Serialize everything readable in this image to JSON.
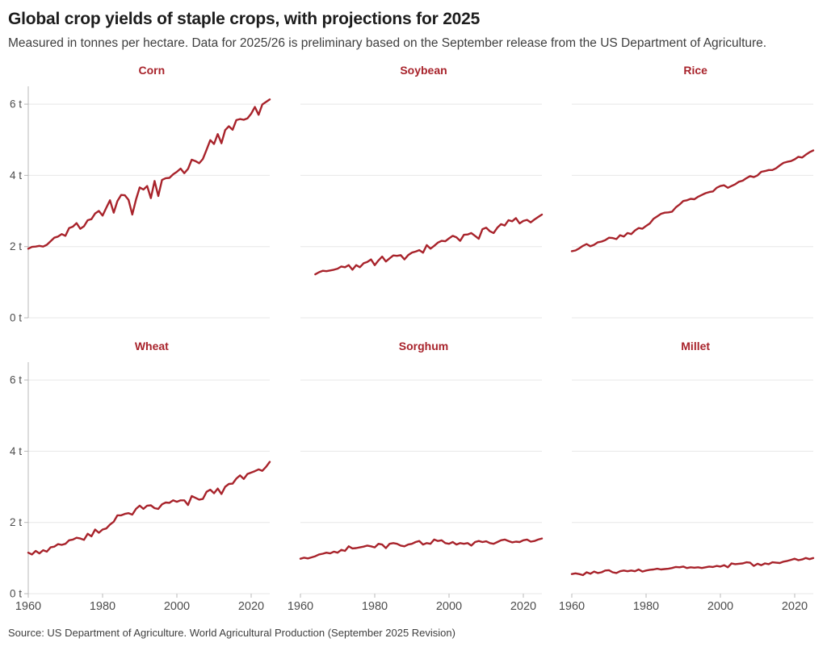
{
  "header": {
    "title": "Global crop yields of staple crops, with projections for 2025",
    "subtitle": "Measured in tonnes per hectare. Data for 2025/26 is preliminary based on the September release from the US Department of Agriculture."
  },
  "source": "Source: US Department of Agriculture. World Agricultural Production (September 2025 Revision)",
  "colors": {
    "line": "#a8232b",
    "facet_title": "#a8232b",
    "grid": "#e7e7e7",
    "axis": "#b8b8b8",
    "tick_text": "#4d4d4d",
    "title_text": "#1d1d1d",
    "subtitle_text": "#3e3e3e"
  },
  "chart_data": {
    "type": "line",
    "unit": "tonnes per hectare",
    "layout": {
      "rows": 2,
      "cols": 3,
      "grid": "horizontal gridlines only, y labels on left column, x labels on bottom row"
    },
    "ylim": [
      0,
      6.5
    ],
    "yticks": [
      0,
      2,
      4,
      6
    ],
    "ytick_labels": [
      "0 t",
      "2 t",
      "4 t",
      "6 t"
    ],
    "xlim": [
      1960,
      2025
    ],
    "xticks": [
      1960,
      1980,
      2000,
      2020
    ],
    "xtick_labels": [
      "1960",
      "1980",
      "2000",
      "2020"
    ],
    "facets": [
      {
        "title": "Corn",
        "start_year": 1960,
        "end_year": 2025,
        "values": [
          1.94,
          1.99,
          2.0,
          2.02,
          2.0,
          2.05,
          2.15,
          2.25,
          2.28,
          2.35,
          2.3,
          2.52,
          2.56,
          2.66,
          2.5,
          2.57,
          2.74,
          2.77,
          2.93,
          3.0,
          2.87,
          3.09,
          3.3,
          2.95,
          3.28,
          3.45,
          3.44,
          3.31,
          2.9,
          3.32,
          3.66,
          3.6,
          3.7,
          3.36,
          3.84,
          3.42,
          3.87,
          3.92,
          3.93,
          4.03,
          4.1,
          4.19,
          4.06,
          4.18,
          4.44,
          4.4,
          4.34,
          4.46,
          4.72,
          4.99,
          4.88,
          5.16,
          4.9,
          5.27,
          5.38,
          5.28,
          5.55,
          5.58,
          5.56,
          5.6,
          5.73,
          5.92,
          5.7,
          5.99,
          6.06,
          6.13
        ]
      },
      {
        "title": "Soybean",
        "start_year": 1964,
        "end_year": 2025,
        "values": [
          1.22,
          1.28,
          1.32,
          1.31,
          1.33,
          1.35,
          1.38,
          1.44,
          1.42,
          1.48,
          1.35,
          1.48,
          1.42,
          1.53,
          1.57,
          1.64,
          1.48,
          1.61,
          1.72,
          1.58,
          1.67,
          1.75,
          1.74,
          1.76,
          1.64,
          1.76,
          1.83,
          1.86,
          1.9,
          1.83,
          2.04,
          1.94,
          2.02,
          2.11,
          2.16,
          2.15,
          2.23,
          2.3,
          2.26,
          2.16,
          2.33,
          2.34,
          2.38,
          2.3,
          2.22,
          2.49,
          2.53,
          2.43,
          2.38,
          2.53,
          2.63,
          2.59,
          2.74,
          2.71,
          2.8,
          2.65,
          2.72,
          2.75,
          2.68,
          2.76,
          2.83,
          2.9
        ]
      },
      {
        "title": "Rice",
        "start_year": 1960,
        "end_year": 2025,
        "values": [
          1.87,
          1.89,
          1.95,
          2.02,
          2.07,
          2.01,
          2.05,
          2.12,
          2.14,
          2.18,
          2.25,
          2.24,
          2.21,
          2.32,
          2.28,
          2.38,
          2.35,
          2.45,
          2.52,
          2.5,
          2.58,
          2.65,
          2.78,
          2.85,
          2.92,
          2.95,
          2.96,
          2.98,
          3.1,
          3.18,
          3.28,
          3.3,
          3.34,
          3.33,
          3.4,
          3.45,
          3.5,
          3.53,
          3.55,
          3.65,
          3.7,
          3.72,
          3.65,
          3.7,
          3.75,
          3.82,
          3.85,
          3.92,
          3.98,
          3.95,
          4.0,
          4.1,
          4.12,
          4.15,
          4.15,
          4.2,
          4.28,
          4.35,
          4.38,
          4.4,
          4.45,
          4.52,
          4.5,
          4.58,
          4.65,
          4.7
        ]
      },
      {
        "title": "Wheat",
        "start_year": 1960,
        "end_year": 2025,
        "values": [
          1.15,
          1.1,
          1.2,
          1.13,
          1.22,
          1.18,
          1.3,
          1.32,
          1.39,
          1.37,
          1.4,
          1.5,
          1.52,
          1.57,
          1.55,
          1.51,
          1.68,
          1.61,
          1.8,
          1.71,
          1.8,
          1.83,
          1.94,
          2.02,
          2.2,
          2.2,
          2.24,
          2.26,
          2.22,
          2.38,
          2.47,
          2.38,
          2.47,
          2.48,
          2.4,
          2.38,
          2.51,
          2.56,
          2.55,
          2.62,
          2.58,
          2.62,
          2.62,
          2.49,
          2.74,
          2.69,
          2.64,
          2.66,
          2.86,
          2.92,
          2.82,
          2.95,
          2.8,
          3.0,
          3.08,
          3.09,
          3.23,
          3.32,
          3.22,
          3.36,
          3.4,
          3.44,
          3.49,
          3.45,
          3.56,
          3.7
        ]
      },
      {
        "title": "Sorghum",
        "start_year": 1960,
        "end_year": 2025,
        "values": [
          0.98,
          1.01,
          0.99,
          1.02,
          1.05,
          1.1,
          1.12,
          1.15,
          1.13,
          1.18,
          1.15,
          1.23,
          1.2,
          1.33,
          1.27,
          1.28,
          1.3,
          1.32,
          1.35,
          1.33,
          1.3,
          1.4,
          1.38,
          1.28,
          1.4,
          1.42,
          1.4,
          1.35,
          1.33,
          1.38,
          1.4,
          1.45,
          1.48,
          1.38,
          1.42,
          1.4,
          1.52,
          1.48,
          1.5,
          1.42,
          1.4,
          1.45,
          1.38,
          1.42,
          1.4,
          1.42,
          1.35,
          1.45,
          1.48,
          1.45,
          1.47,
          1.42,
          1.4,
          1.45,
          1.5,
          1.52,
          1.48,
          1.44,
          1.46,
          1.45,
          1.5,
          1.52,
          1.46,
          1.48,
          1.52,
          1.55
        ]
      },
      {
        "title": "Millet",
        "start_year": 1960,
        "end_year": 2025,
        "values": [
          0.55,
          0.57,
          0.55,
          0.52,
          0.6,
          0.56,
          0.62,
          0.58,
          0.6,
          0.65,
          0.66,
          0.6,
          0.58,
          0.63,
          0.65,
          0.63,
          0.65,
          0.63,
          0.68,
          0.62,
          0.65,
          0.67,
          0.68,
          0.7,
          0.68,
          0.69,
          0.7,
          0.72,
          0.75,
          0.74,
          0.76,
          0.72,
          0.74,
          0.73,
          0.74,
          0.72,
          0.74,
          0.76,
          0.75,
          0.78,
          0.76,
          0.8,
          0.74,
          0.85,
          0.83,
          0.84,
          0.85,
          0.88,
          0.87,
          0.78,
          0.84,
          0.8,
          0.85,
          0.83,
          0.88,
          0.87,
          0.86,
          0.9,
          0.92,
          0.95,
          0.98,
          0.94,
          0.96,
          1.0,
          0.97,
          1.0
        ]
      }
    ]
  }
}
